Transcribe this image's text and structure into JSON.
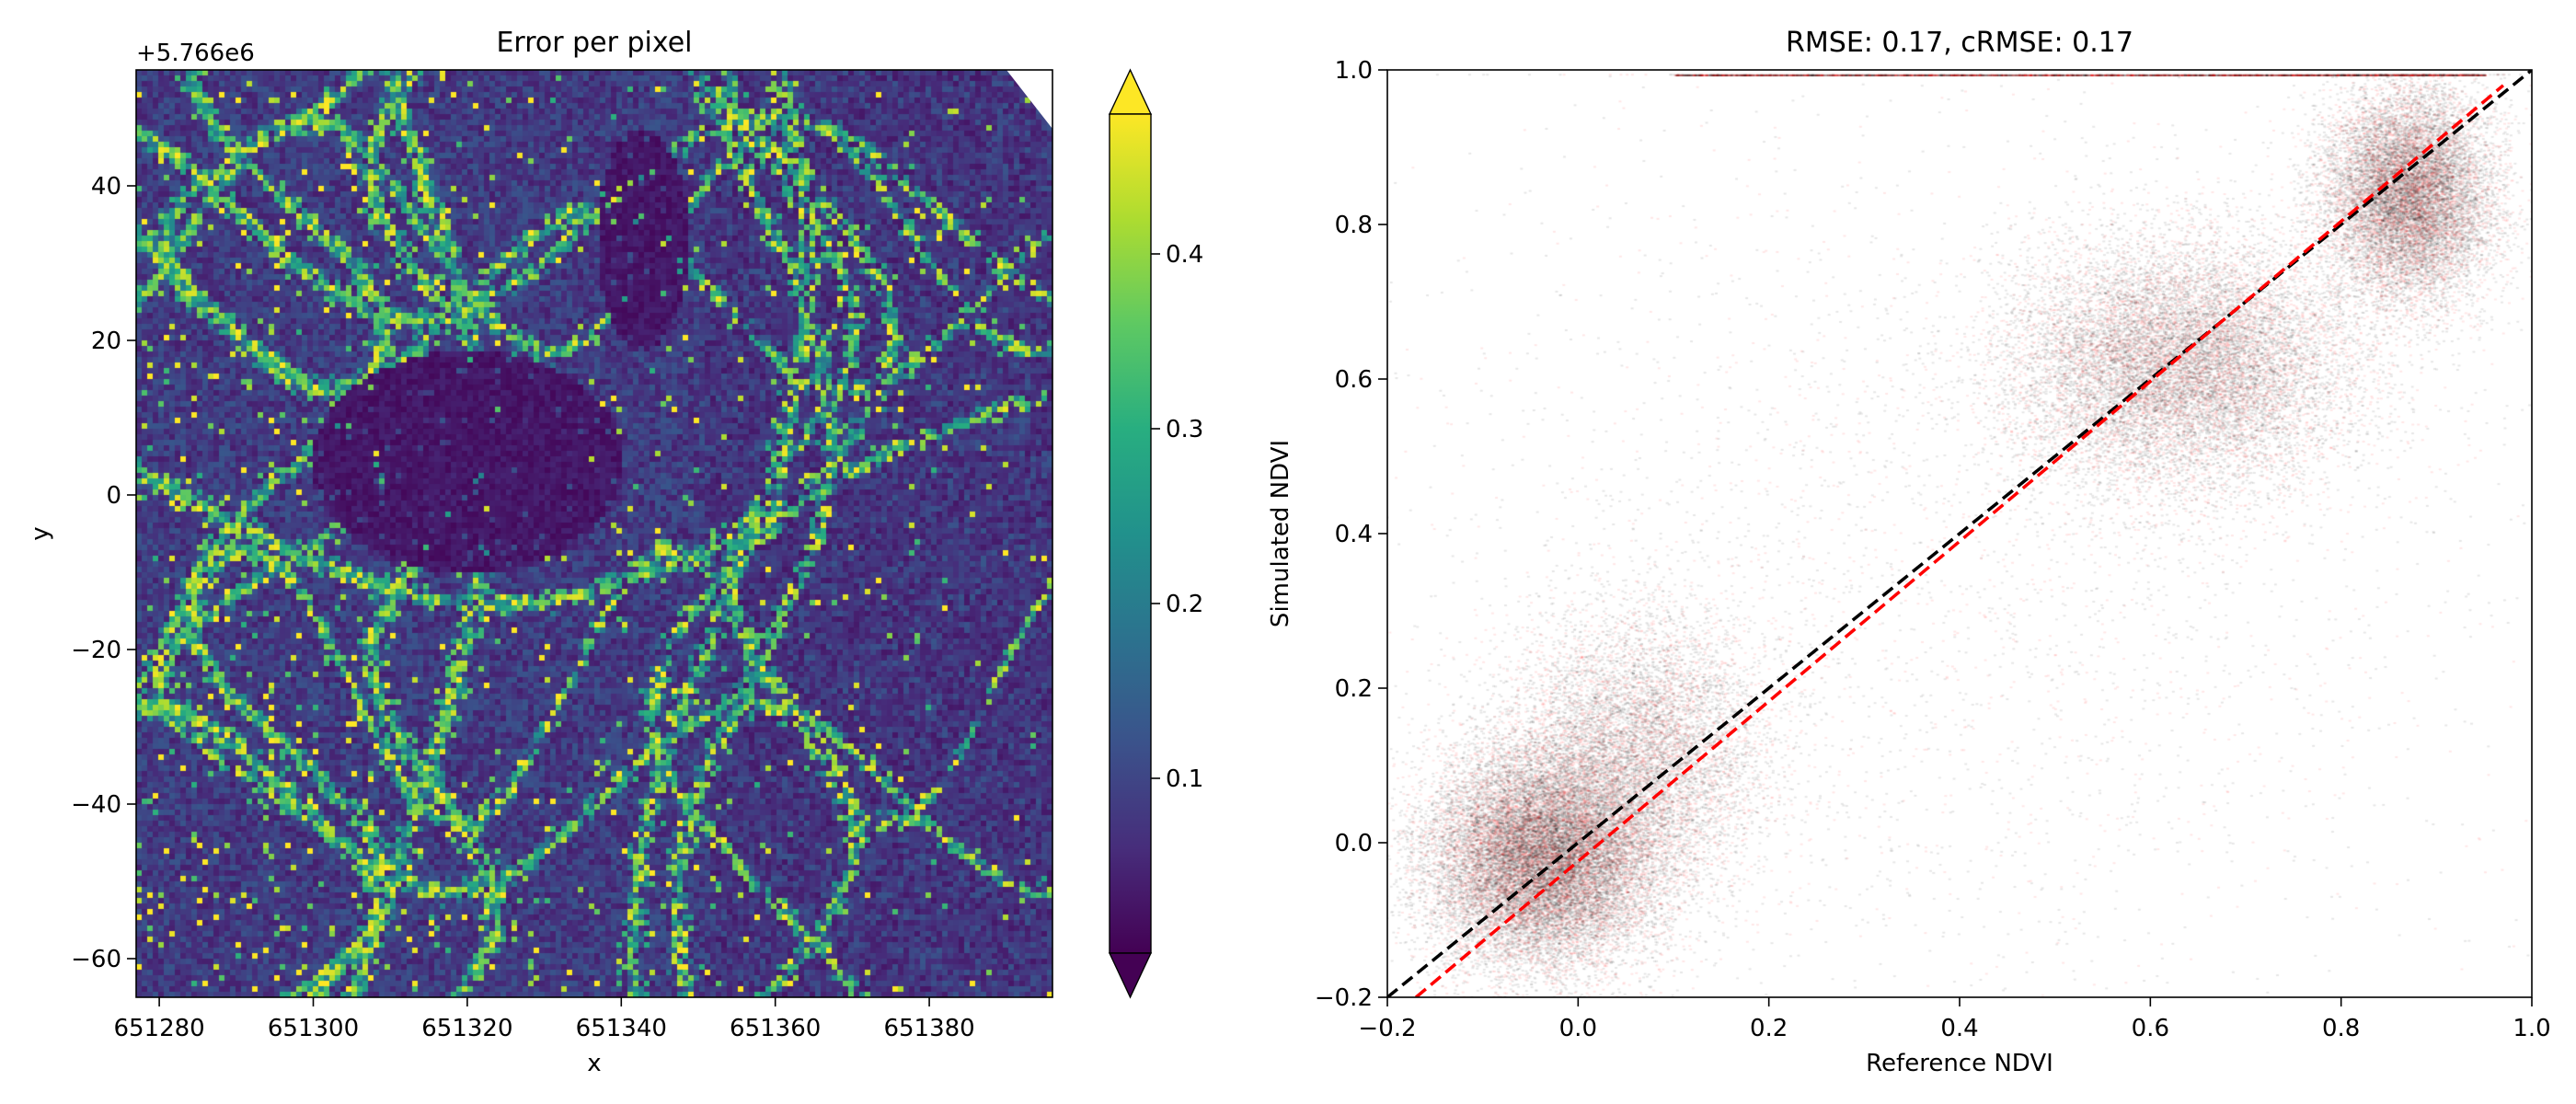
{
  "chart_data": [
    {
      "type": "heatmap",
      "title": "Error per pixel",
      "xlabel": "x",
      "ylabel": "y",
      "y_offset_text": "+5.766e6",
      "xlim": [
        651277,
        651396
      ],
      "ylim": [
        -65,
        55
      ],
      "x_ticks": [
        651280,
        651300,
        651320,
        651340,
        651360,
        651380
      ],
      "y_ticks": [
        -60,
        -40,
        -20,
        0,
        20,
        40
      ],
      "x_tick_labels": [
        "651280",
        "651300",
        "651320",
        "651340",
        "651360",
        "651380"
      ],
      "y_tick_labels": [
        "−60",
        "−40",
        "−20",
        "0",
        "20",
        "40"
      ],
      "colormap": "viridis",
      "colorbar": {
        "vmin": 0.0,
        "vmax": 0.48,
        "extend": "both",
        "ticks": [
          0.1,
          0.2,
          0.3,
          0.4
        ],
        "tick_labels": [
          "0.1",
          "0.2",
          "0.3",
          "0.4"
        ]
      },
      "grid": false
    },
    {
      "type": "scatter",
      "title": "RMSE: 0.17, cRMSE: 0.17",
      "xlabel": "Reference NDVI",
      "ylabel": "Simulated NDVI",
      "xlim": [
        -0.2,
        1.0
      ],
      "ylim": [
        -0.2,
        1.0
      ],
      "x_ticks": [
        -0.2,
        0.0,
        0.2,
        0.4,
        0.6,
        0.8,
        1.0
      ],
      "y_ticks": [
        -0.2,
        0.0,
        0.2,
        0.4,
        0.6,
        0.8,
        1.0
      ],
      "x_tick_labels": [
        "−0.2",
        "0.0",
        "0.2",
        "0.4",
        "0.6",
        "0.8",
        "1.0"
      ],
      "y_tick_labels": [
        "−0.2",
        "0.0",
        "0.2",
        "0.4",
        "0.6",
        "0.8",
        "1.0"
      ],
      "point_colors": [
        "#000000",
        "#ff0000"
      ],
      "clusters": [
        {
          "cx": -0.04,
          "cy": -0.02,
          "sx": 0.06,
          "sy": 0.07,
          "weight": 0.34
        },
        {
          "cx": 0.06,
          "cy": 0.12,
          "sx": 0.07,
          "sy": 0.09,
          "weight": 0.14
        },
        {
          "cx": 0.63,
          "cy": 0.62,
          "sx": 0.09,
          "sy": 0.08,
          "weight": 0.24
        },
        {
          "cx": 0.87,
          "cy": 0.84,
          "sx": 0.045,
          "sy": 0.07,
          "weight": 0.22
        },
        {
          "cx": 0.4,
          "cy": 0.35,
          "sx": 0.3,
          "sy": 0.3,
          "weight": 0.06
        }
      ],
      "lines": [
        {
          "x": [
            -0.2,
            1.0
          ],
          "y": [
            -0.2,
            1.0
          ],
          "color": "#000000",
          "style": "dashed"
        },
        {
          "x": [
            -0.17,
            0.97
          ],
          "y": [
            -0.2,
            0.98
          ],
          "color": "#ff0000",
          "style": "dashed"
        }
      ],
      "grid": false
    }
  ]
}
